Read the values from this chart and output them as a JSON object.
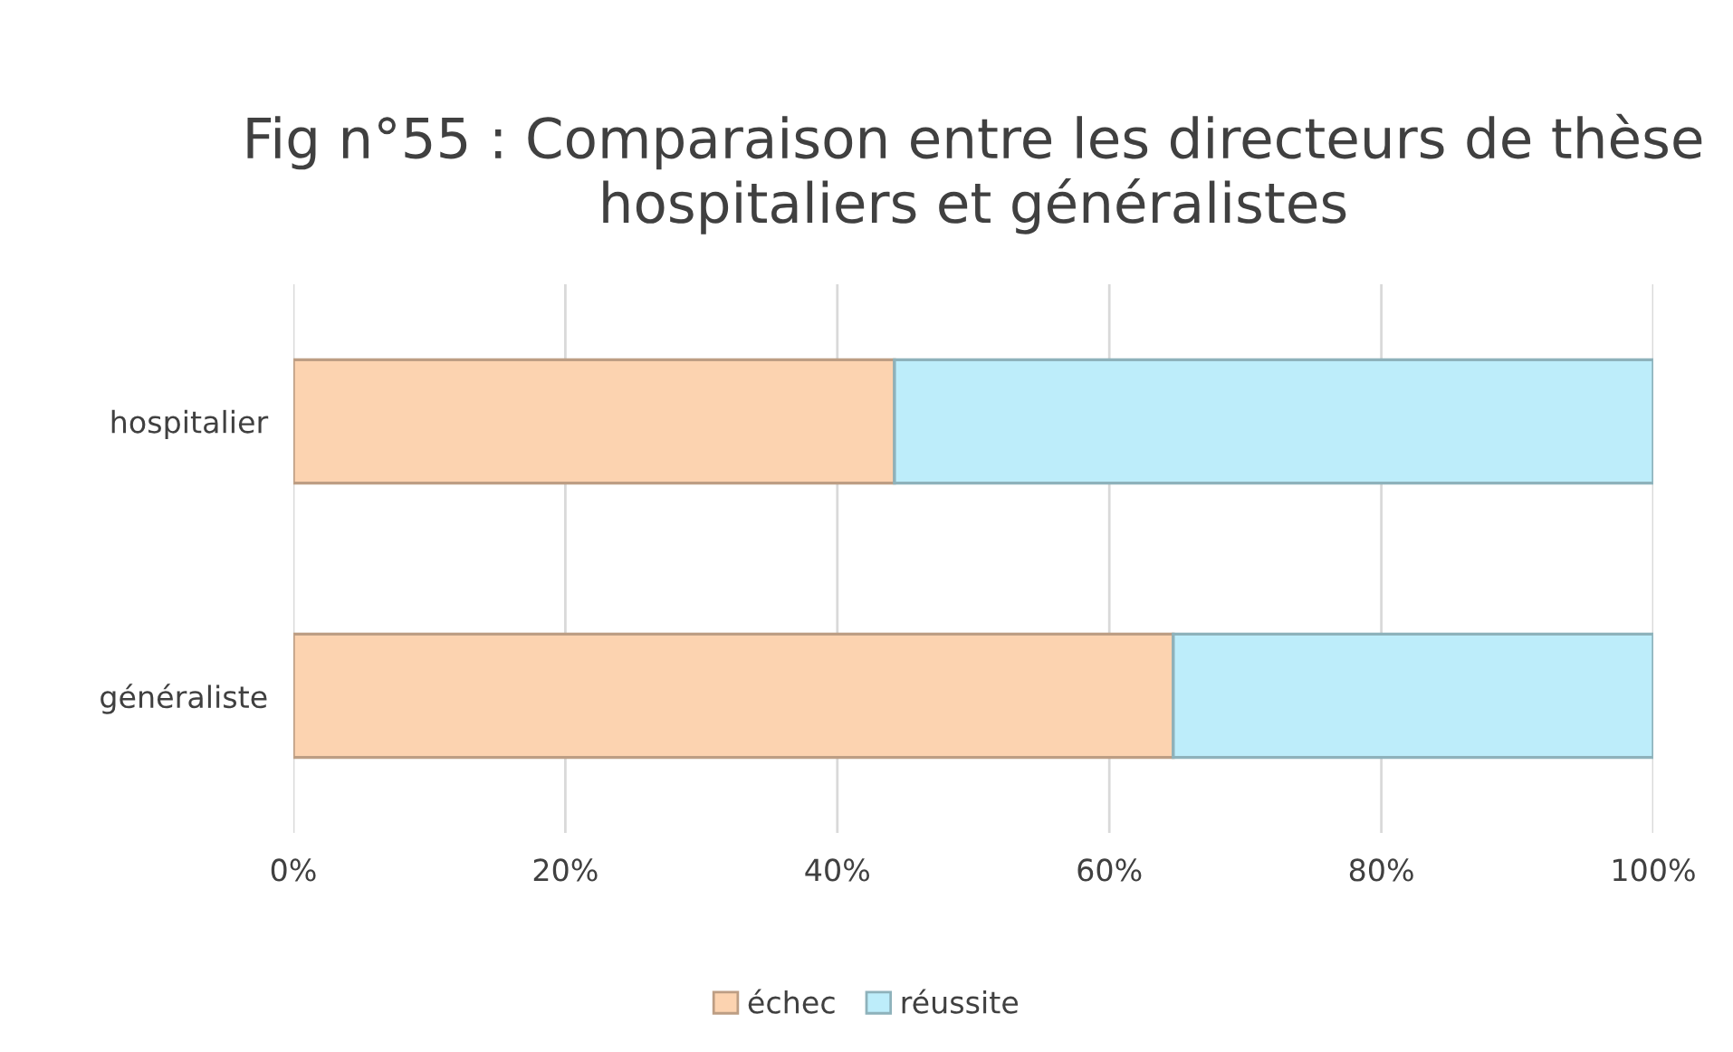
{
  "chart_data": {
    "type": "bar",
    "orientation": "horizontal",
    "stacked": true,
    "title": "Fig n°55 : Comparaison entre les directeurs de thèse hospitaliers et généralistes",
    "categories": [
      "hospitalier",
      "généraliste"
    ],
    "series": [
      {
        "name": "échec",
        "color": "#fcd3b0",
        "values": [
          44.2,
          64.7
        ]
      },
      {
        "name": "réussite",
        "color": "#bdedfa",
        "values": [
          55.8,
          35.3
        ]
      }
    ],
    "xlim": [
      0,
      100
    ],
    "xticks": [
      {
        "value": 0,
        "label": "0%"
      },
      {
        "value": 20,
        "label": "20%"
      },
      {
        "value": 40,
        "label": "40%"
      },
      {
        "value": 60,
        "label": "60%"
      },
      {
        "value": 80,
        "label": "80%"
      },
      {
        "value": 100,
        "label": "100%"
      }
    ],
    "grid": "x",
    "legend": "bottom"
  }
}
